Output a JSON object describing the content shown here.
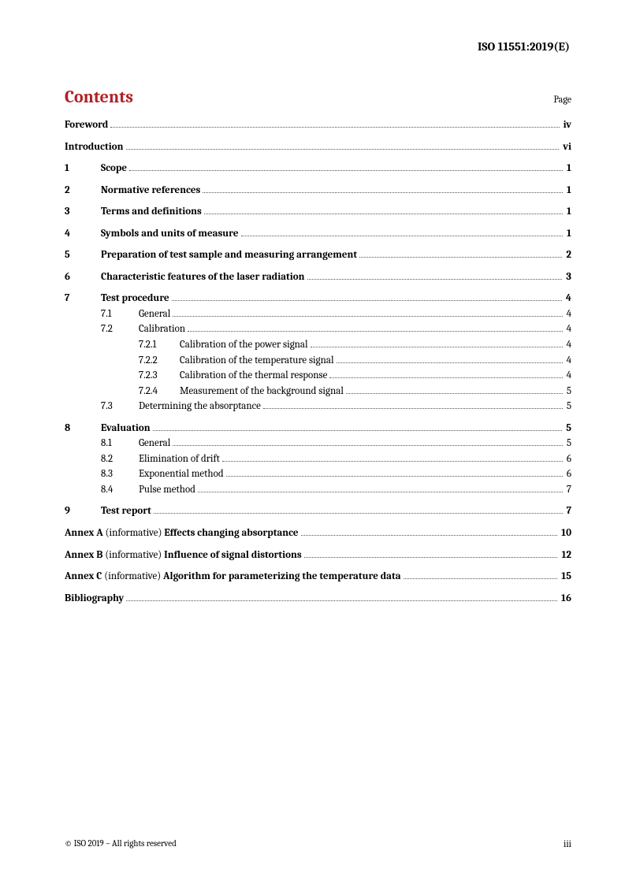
{
  "header": "ISO 11551:2019(E)",
  "contents_title": "Contents",
  "page_label": "Page",
  "toc_top": [
    {
      "title": "Foreword",
      "page": "iv",
      "bold": true
    },
    {
      "title": "Introduction",
      "page": "vi",
      "bold": true
    }
  ],
  "sections": [
    {
      "num": "1",
      "title": "Scope",
      "page": "1"
    },
    {
      "num": "2",
      "title": "Normative references",
      "page": "1"
    },
    {
      "num": "3",
      "title": "Terms and definitions",
      "page": "1"
    },
    {
      "num": "4",
      "title": "Symbols and units of measure",
      "page": "1"
    },
    {
      "num": "5",
      "title": "Preparation of test sample and measuring arrangement",
      "page": "2"
    },
    {
      "num": "6",
      "title": "Characteristic features of the laser radiation",
      "page": "3"
    }
  ],
  "s7": {
    "num": "7",
    "title": "Test procedure",
    "page": "4",
    "s71": {
      "num": "7.1",
      "title": "General",
      "page": "4"
    },
    "s72": {
      "num": "7.2",
      "title": "Calibration",
      "page": "4",
      "s721": {
        "num": "7.2.1",
        "title": "Calibration of the power signal",
        "page": "4"
      },
      "s722": {
        "num": "7.2.2",
        "title": "Calibration of the temperature signal",
        "page": "4"
      },
      "s723": {
        "num": "7.2.3",
        "title": "Calibration of the thermal response",
        "page": "4"
      },
      "s724": {
        "num": "7.2.4",
        "title": "Measurement of the background signal",
        "page": "5"
      }
    },
    "s73": {
      "num": "7.3",
      "title": "Determining the absorptance",
      "page": "5"
    }
  },
  "s8": {
    "num": "8",
    "title": "Evaluation",
    "page": "5",
    "s81": {
      "num": "8.1",
      "title": "General",
      "page": "5"
    },
    "s82": {
      "num": "8.2",
      "title": "Elimination of drift",
      "page": "6"
    },
    "s83": {
      "num": "8.3",
      "title": "Exponential method",
      "page": "6"
    },
    "s84": {
      "num": "8.4",
      "title": "Pulse method",
      "page": "7"
    }
  },
  "s9": {
    "num": "9",
    "title": "Test report",
    "page": "7"
  },
  "annexes": [
    {
      "prefix": "Annex A",
      "note": " (informative) ",
      "title": "Effects changing absorptance",
      "page": "10"
    },
    {
      "prefix": "Annex B",
      "note": " (informative) ",
      "title": "Influence of signal distortions",
      "page": "12"
    },
    {
      "prefix": "Annex C",
      "note": " (informative) ",
      "title": "Algorithm for parameterizing the temperature data",
      "page": "15"
    }
  ],
  "biblio": {
    "title": "Bibliography",
    "page": "16"
  },
  "footer_left": "© ISO 2019 – All rights reserved",
  "footer_right": "iii"
}
